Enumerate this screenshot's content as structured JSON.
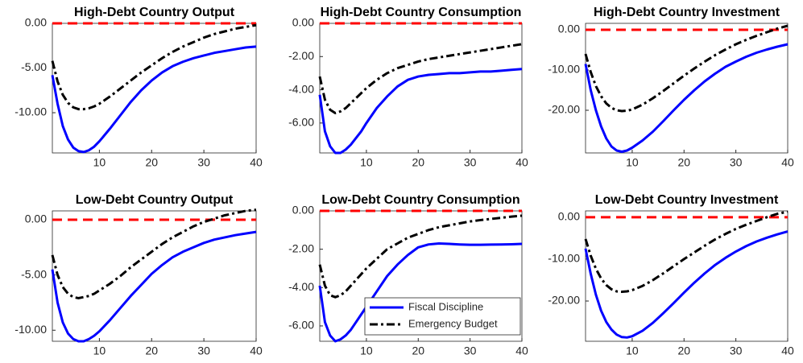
{
  "chart_data": [
    {
      "type": "line",
      "title": "High-Debt Country Output",
      "x": [
        1,
        2,
        3,
        4,
        5,
        6,
        7,
        8,
        9,
        10,
        12,
        14,
        16,
        18,
        20,
        22,
        24,
        26,
        28,
        30,
        32,
        34,
        36,
        38,
        40
      ],
      "series": [
        {
          "name": "Fiscal Discipline",
          "color": "#0000ff",
          "linestyle": "solid",
          "values": [
            -5.8,
            -9,
            -11.5,
            -13,
            -13.9,
            -14.3,
            -14.4,
            -14.2,
            -13.8,
            -13.2,
            -11.8,
            -10.3,
            -8.8,
            -7.5,
            -6.4,
            -5.5,
            -4.8,
            -4.3,
            -3.9,
            -3.6,
            -3.3,
            -3.1,
            -2.9,
            -2.7,
            -2.6
          ]
        },
        {
          "name": "Emergency Budget",
          "color": "#000000",
          "linestyle": "dash-dot",
          "values": [
            -4.2,
            -6.5,
            -8,
            -8.9,
            -9.4,
            -9.6,
            -9.6,
            -9.5,
            -9.3,
            -9,
            -8.2,
            -7.3,
            -6.4,
            -5.5,
            -4.7,
            -3.9,
            -3.2,
            -2.6,
            -2.1,
            -1.6,
            -1.2,
            -0.9,
            -0.6,
            -0.4,
            -0.2
          ]
        }
      ],
      "reference_line": {
        "value": 0,
        "color": "#ff0000"
      },
      "xlim": [
        1,
        40
      ],
      "xticks": [
        10,
        20,
        30,
        40
      ],
      "ylim": [
        -14.5,
        0
      ],
      "yticks": [
        {
          "value": -10,
          "label": "-10.00"
        },
        {
          "value": -5,
          "label": "-5.00"
        },
        {
          "value": 0,
          "label": "0.00"
        }
      ]
    },
    {
      "type": "line",
      "title": "High-Debt Country Consumption",
      "x": [
        1,
        2,
        3,
        4,
        5,
        6,
        7,
        8,
        9,
        10,
        12,
        14,
        16,
        18,
        20,
        22,
        24,
        26,
        28,
        30,
        32,
        34,
        36,
        38,
        40
      ],
      "series": [
        {
          "name": "Fiscal Discipline",
          "color": "#0000ff",
          "linestyle": "solid",
          "values": [
            -4.3,
            -6.5,
            -7.4,
            -7.8,
            -7.8,
            -7.6,
            -7.3,
            -6.9,
            -6.5,
            -6,
            -5.1,
            -4.4,
            -3.8,
            -3.4,
            -3.2,
            -3.1,
            -3.05,
            -3,
            -3,
            -2.95,
            -2.9,
            -2.9,
            -2.85,
            -2.8,
            -2.75
          ]
        },
        {
          "name": "Emergency Budget",
          "color": "#000000",
          "linestyle": "dash-dot",
          "values": [
            -3.2,
            -4.6,
            -5.2,
            -5.4,
            -5.3,
            -5.1,
            -4.8,
            -4.5,
            -4.2,
            -3.9,
            -3.4,
            -3,
            -2.7,
            -2.5,
            -2.3,
            -2.15,
            -2.05,
            -1.95,
            -1.85,
            -1.75,
            -1.65,
            -1.55,
            -1.45,
            -1.35,
            -1.25
          ]
        }
      ],
      "reference_line": {
        "value": 0,
        "color": "#ff0000"
      },
      "xlim": [
        1,
        40
      ],
      "xticks": [
        10,
        20,
        30,
        40
      ],
      "ylim": [
        -7.8,
        0
      ],
      "yticks": [
        {
          "value": -6,
          "label": "-6.00"
        },
        {
          "value": -4,
          "label": "-4.00"
        },
        {
          "value": -2,
          "label": "-2.00"
        },
        {
          "value": 0,
          "label": "0.00"
        }
      ]
    },
    {
      "type": "line",
      "title": "High-Debt Country Investment",
      "x": [
        1,
        2,
        3,
        4,
        5,
        6,
        7,
        8,
        9,
        10,
        12,
        14,
        16,
        18,
        20,
        22,
        24,
        26,
        28,
        30,
        32,
        34,
        36,
        38,
        40
      ],
      "series": [
        {
          "name": "Fiscal Discipline",
          "color": "#0000ff",
          "linestyle": "solid",
          "values": [
            -8.5,
            -15,
            -20,
            -24,
            -27,
            -29,
            -30,
            -30.3,
            -30,
            -29.3,
            -27.5,
            -25.3,
            -22.7,
            -20,
            -17.4,
            -15,
            -12.8,
            -10.9,
            -9.2,
            -7.9,
            -6.7,
            -5.7,
            -4.9,
            -4.2,
            -3.6
          ]
        },
        {
          "name": "Emergency Budget",
          "color": "#000000",
          "linestyle": "dash-dot",
          "values": [
            -6,
            -10.5,
            -14,
            -16.5,
            -18.3,
            -19.4,
            -20,
            -20.2,
            -20.1,
            -19.8,
            -18.6,
            -17,
            -15.2,
            -13.3,
            -11.4,
            -9.6,
            -7.9,
            -6.3,
            -4.9,
            -3.6,
            -2.5,
            -1.5,
            -0.6,
            0.3,
            1
          ]
        }
      ],
      "reference_line": {
        "value": 0,
        "color": "#ff0000"
      },
      "xlim": [
        1,
        40
      ],
      "xticks": [
        10,
        20,
        30,
        40
      ],
      "ylim": [
        -30.6,
        1.6
      ],
      "yticks": [
        {
          "value": -20,
          "label": "-20.00"
        },
        {
          "value": -10,
          "label": "-10.00"
        },
        {
          "value": 0,
          "label": "0.00"
        }
      ]
    },
    {
      "type": "line",
      "title": "Low-Debt Country Output",
      "x": [
        1,
        2,
        3,
        4,
        5,
        6,
        7,
        8,
        9,
        10,
        12,
        14,
        16,
        18,
        20,
        22,
        24,
        26,
        28,
        30,
        32,
        34,
        36,
        38,
        40
      ],
      "series": [
        {
          "name": "Fiscal Discipline",
          "color": "#0000ff",
          "linestyle": "solid",
          "values": [
            -4.5,
            -7.5,
            -9.3,
            -10.3,
            -10.8,
            -11,
            -11,
            -10.8,
            -10.5,
            -10.1,
            -9.1,
            -8,
            -6.9,
            -5.9,
            -4.9,
            -4.1,
            -3.4,
            -2.9,
            -2.5,
            -2.1,
            -1.8,
            -1.6,
            -1.4,
            -1.25,
            -1.1
          ]
        },
        {
          "name": "Emergency Budget",
          "color": "#000000",
          "linestyle": "dash-dot",
          "values": [
            -3.2,
            -5,
            -6.1,
            -6.7,
            -7,
            -7.1,
            -7,
            -6.9,
            -6.7,
            -6.4,
            -5.8,
            -5.1,
            -4.3,
            -3.6,
            -2.9,
            -2.2,
            -1.6,
            -1.1,
            -0.6,
            -0.2,
            0.1,
            0.4,
            0.6,
            0.8,
            0.9
          ]
        }
      ],
      "reference_line": {
        "value": 0,
        "color": "#ff0000"
      },
      "xlim": [
        1,
        40
      ],
      "xticks": [
        10,
        20,
        30,
        40
      ],
      "ylim": [
        -11,
        0.8
      ],
      "yticks": [
        {
          "value": -10,
          "label": "-10.00"
        },
        {
          "value": -5,
          "label": "-5.00"
        },
        {
          "value": 0,
          "label": "0.00"
        }
      ]
    },
    {
      "type": "line",
      "title": "Low-Debt Country Consumption",
      "x": [
        1,
        2,
        3,
        4,
        5,
        6,
        7,
        8,
        9,
        10,
        12,
        14,
        16,
        18,
        20,
        22,
        24,
        26,
        28,
        30,
        32,
        34,
        36,
        38,
        40
      ],
      "series": [
        {
          "name": "Fiscal Discipline",
          "color": "#0000ff",
          "linestyle": "solid",
          "values": [
            -3.9,
            -5.8,
            -6.5,
            -6.8,
            -6.7,
            -6.5,
            -6.2,
            -5.8,
            -5.4,
            -5,
            -4.2,
            -3.4,
            -2.8,
            -2.3,
            -1.9,
            -1.75,
            -1.7,
            -1.72,
            -1.75,
            -1.77,
            -1.77,
            -1.76,
            -1.75,
            -1.74,
            -1.72
          ]
        },
        {
          "name": "Emergency Budget",
          "color": "#000000",
          "linestyle": "dash-dot",
          "values": [
            -2.8,
            -3.9,
            -4.4,
            -4.5,
            -4.4,
            -4.2,
            -3.9,
            -3.6,
            -3.3,
            -3,
            -2.5,
            -2,
            -1.7,
            -1.4,
            -1.2,
            -1,
            -0.85,
            -0.75,
            -0.65,
            -0.55,
            -0.48,
            -0.42,
            -0.36,
            -0.3,
            -0.25
          ]
        }
      ],
      "reference_line": {
        "value": 0,
        "color": "#ff0000"
      },
      "xlim": [
        1,
        40
      ],
      "xticks": [
        10,
        20,
        30,
        40
      ],
      "ylim": [
        -6.8,
        0
      ],
      "yticks": [
        {
          "value": -6,
          "label": "-6.00"
        },
        {
          "value": -4,
          "label": "-4.00"
        },
        {
          "value": -2,
          "label": "-2.00"
        },
        {
          "value": 0,
          "label": "0.00"
        }
      ],
      "legend": "lower-right"
    },
    {
      "type": "line",
      "title": "Low-Debt Country Investment",
      "x": [
        1,
        2,
        3,
        4,
        5,
        6,
        7,
        8,
        9,
        10,
        12,
        14,
        16,
        18,
        20,
        22,
        24,
        26,
        28,
        30,
        32,
        34,
        36,
        38,
        40
      ],
      "series": [
        {
          "name": "Fiscal Discipline",
          "color": "#0000ff",
          "linestyle": "solid",
          "values": [
            -7.5,
            -13.5,
            -18.5,
            -22.3,
            -25,
            -26.8,
            -28,
            -28.6,
            -28.7,
            -28.4,
            -27.1,
            -25.2,
            -22.9,
            -20.5,
            -18,
            -15.6,
            -13.4,
            -11.4,
            -9.7,
            -8.2,
            -6.9,
            -5.8,
            -4.9,
            -4.1,
            -3.4
          ]
        },
        {
          "name": "Emergency Budget",
          "color": "#000000",
          "linestyle": "dash-dot",
          "values": [
            -5.2,
            -9.2,
            -12.3,
            -14.6,
            -16.2,
            -17.2,
            -17.7,
            -17.8,
            -17.7,
            -17.4,
            -16.4,
            -15,
            -13.4,
            -11.7,
            -10,
            -8.4,
            -6.8,
            -5.3,
            -4,
            -2.8,
            -1.8,
            -0.9,
            0,
            0.8,
            1.3
          ]
        }
      ],
      "reference_line": {
        "value": 0,
        "color": "#ff0000"
      },
      "xlim": [
        1,
        40
      ],
      "xticks": [
        10,
        20,
        30,
        40
      ],
      "ylim": [
        -29.6,
        1.5
      ],
      "yticks": [
        {
          "value": -20,
          "label": "-20.00"
        },
        {
          "value": -10,
          "label": "-10.00"
        },
        {
          "value": 0,
          "label": "0.00"
        }
      ]
    }
  ]
}
